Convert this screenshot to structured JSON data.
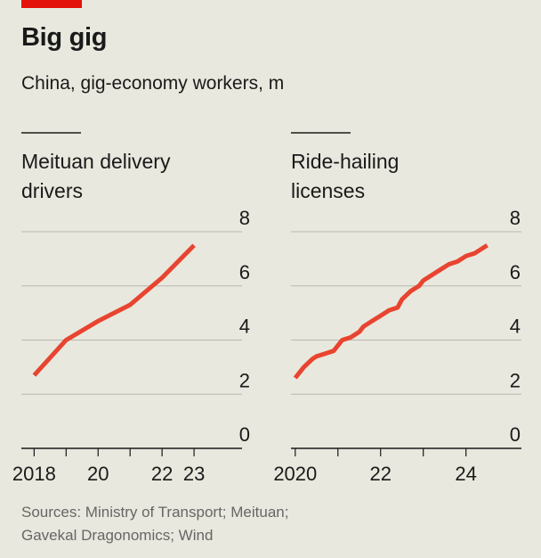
{
  "header": {
    "title": "Big gig",
    "subtitle": "China, gig-economy workers, m"
  },
  "source": {
    "line1": "Sources: Ministry of Transport; Meituan;",
    "line2": "Gavekal Dragonomics; Wind"
  },
  "colors": {
    "line": "#e84430",
    "accent": "#e3120b",
    "grid": "#b7b7ad",
    "axis": "#1a1a1a"
  },
  "chart_data": [
    {
      "type": "line",
      "title_lines": [
        "Meituan delivery",
        "drivers"
      ],
      "xlim": [
        2017.6,
        2024.5
      ],
      "ylim": [
        0,
        8
      ],
      "y_ticks": [
        0,
        2,
        4,
        6,
        8
      ],
      "x_ticks": [
        {
          "value": 2018,
          "label": "2018"
        },
        {
          "value": 2020,
          "label": "20"
        },
        {
          "value": 2022,
          "label": "22"
        },
        {
          "value": 2023,
          "label": "23"
        }
      ],
      "x_minor_ticks": [
        2019,
        2021
      ],
      "grid": true,
      "series": [
        {
          "x": [
            2018,
            2019,
            2020,
            2021,
            2022,
            2023
          ],
          "y": [
            2.7,
            4.0,
            4.7,
            5.3,
            6.3,
            7.5
          ]
        }
      ]
    },
    {
      "type": "line",
      "title_lines": [
        "Ride-hailing",
        "licenses"
      ],
      "xlim": [
        2019.9,
        2025.3
      ],
      "ylim": [
        0,
        8
      ],
      "y_ticks": [
        0,
        2,
        4,
        6,
        8
      ],
      "x_ticks": [
        {
          "value": 2020,
          "label": "2020"
        },
        {
          "value": 2022,
          "label": "22"
        },
        {
          "value": 2024,
          "label": "24"
        }
      ],
      "x_minor_ticks": [
        2021,
        2023
      ],
      "grid": true,
      "series": [
        {
          "x": [
            2020.0,
            2020.2,
            2020.4,
            2020.5,
            2020.7,
            2020.9,
            2021.0,
            2021.1,
            2021.3,
            2021.5,
            2021.6,
            2021.8,
            2022.0,
            2022.2,
            2022.4,
            2022.5,
            2022.7,
            2022.9,
            2023.0,
            2023.2,
            2023.4,
            2023.6,
            2023.8,
            2024.0,
            2024.2,
            2024.4,
            2024.5
          ],
          "y": [
            2.6,
            3.0,
            3.3,
            3.4,
            3.5,
            3.6,
            3.8,
            4.0,
            4.1,
            4.3,
            4.5,
            4.7,
            4.9,
            5.1,
            5.2,
            5.5,
            5.8,
            6.0,
            6.2,
            6.4,
            6.6,
            6.8,
            6.9,
            7.1,
            7.2,
            7.4,
            7.5
          ]
        }
      ]
    }
  ]
}
